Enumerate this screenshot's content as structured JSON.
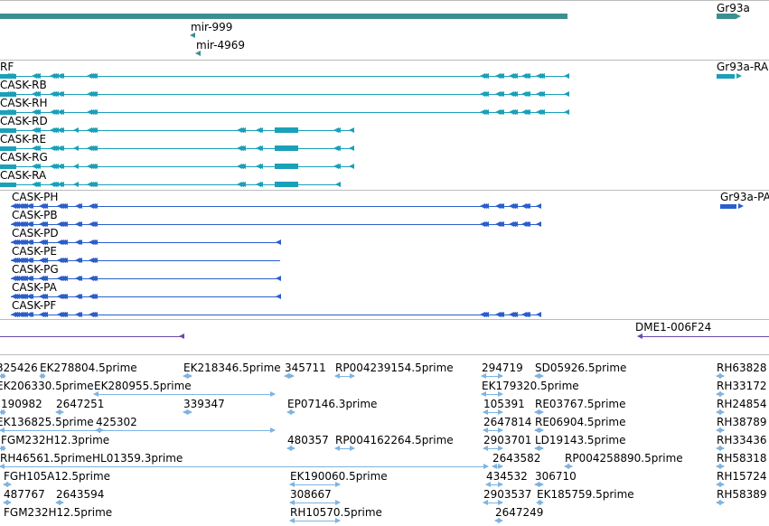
{
  "colors": {
    "gene": "#3d8f8f",
    "transcript": "#1aa0b8",
    "protein": "#2a5fcc",
    "insertion": "#6a4aa8",
    "est": "#7fb3e0",
    "separator": "#bcbcbc"
  },
  "tracks": {
    "genes": {
      "labels": [
        "Gr93a",
        "mir-999",
        "mir-4969"
      ]
    },
    "transcripts": {
      "labels": [
        "RF",
        "CASK-RB",
        "CASK-RH",
        "CASK-RD",
        "CASK-RE",
        "CASK-RG",
        "CASK-RA",
        "Gr93a-RA"
      ]
    },
    "proteins": {
      "labels": [
        "CASK-PH",
        "CASK-PB",
        "CASK-PD",
        "CASK-PE",
        "CASK-PG",
        "CASK-PA",
        "CASK-PF",
        "Gr93a-PA"
      ]
    },
    "insertions": {
      "labels": [
        "DME1-006F24"
      ]
    },
    "ests": {
      "labels": [
        "325426",
        "EK278804.5prime",
        "EK218346.5prime",
        "345711",
        "RP004239154.5prime",
        "294719",
        "SD05926.5prime",
        "RH63828",
        "EK206330.5prime",
        "EK280955.5prime",
        "EK179320.5prime",
        "RH33172",
        "190982",
        "2647251",
        "339347",
        "EP07146.3prime",
        "105391",
        "RE03767.5prime",
        "RH24854",
        "EK136825.5prime",
        "425302",
        "2647814",
        "RE06904.5prime",
        "RH38789",
        "FGM232H12.3prime",
        "480357",
        "RP004162264.5prime",
        "2903701",
        "LD19143.5prime",
        "RH33436",
        "RH46561.5prime",
        "HL01359.3prime",
        "2643582",
        "RP004258890.5prime",
        "RH58318",
        "FGH105A12.5prime",
        "EK190060.5prime",
        "434532",
        "306710",
        "RH15724",
        "487767",
        "2643594",
        "308667",
        "2903537",
        "EK185759.5prime",
        "RH58389",
        "FGM232H12.5prime",
        "RH10570.5prime",
        "2647249"
      ]
    }
  }
}
